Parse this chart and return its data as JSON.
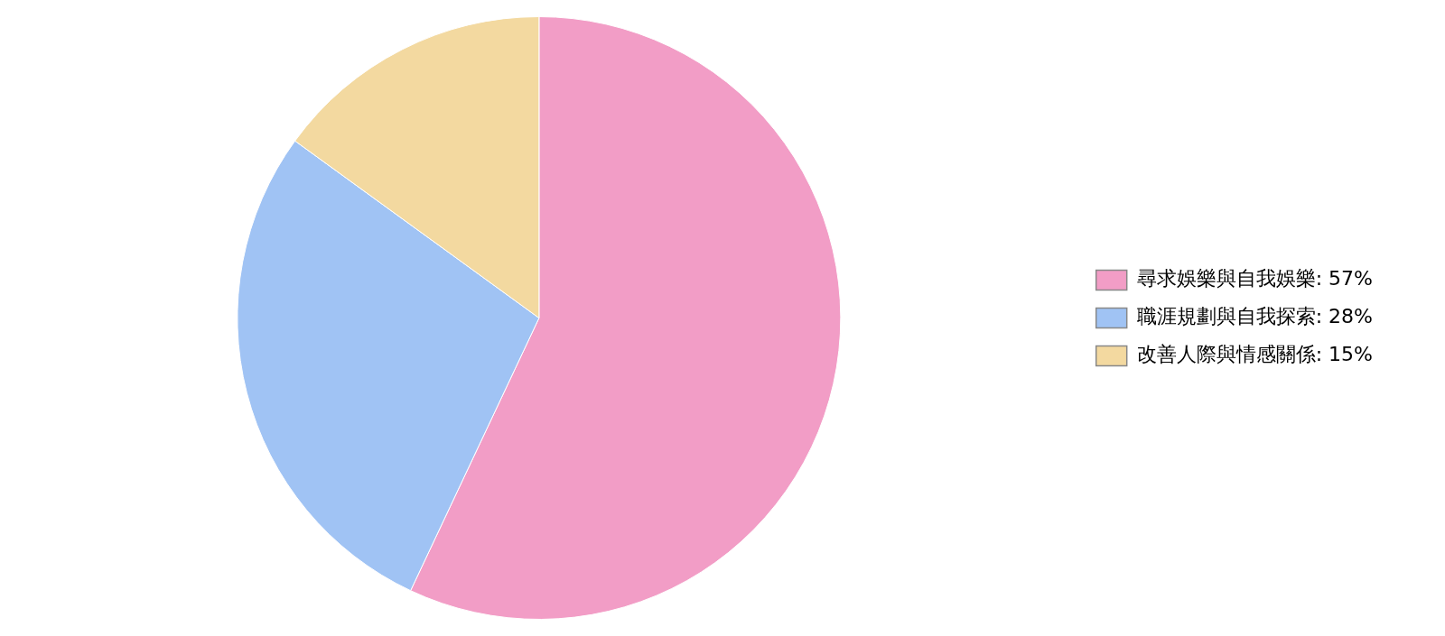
{
  "chart_data": {
    "type": "pie",
    "categories": [
      "尋求娛樂與自我娛樂: 57%",
      "職涯規劃與自我探索: 28%",
      "改善人際與情感關係: 15%"
    ],
    "values": [
      57,
      28,
      15
    ],
    "colors": [
      "#f29dc6",
      "#a0c3f4",
      "#f3d9a0"
    ],
    "legend": "right"
  }
}
